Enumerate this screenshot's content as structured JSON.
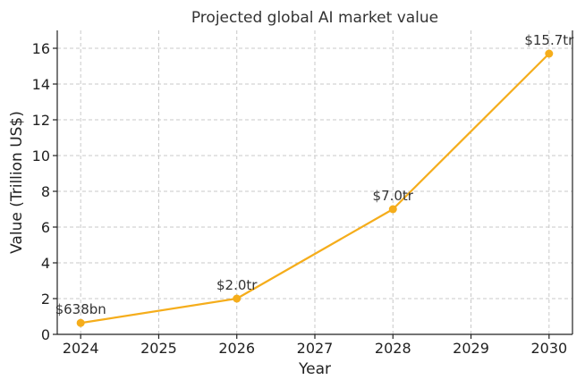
{
  "chart_data": {
    "type": "line",
    "title": "Projected global AI market value",
    "xlabel": "Year",
    "ylabel": "Value (Trillion US$)",
    "xlim": [
      2023.7,
      2030.3
    ],
    "ylim": [
      0,
      17
    ],
    "x_ticks": [
      2024,
      2025,
      2026,
      2027,
      2028,
      2029,
      2030
    ],
    "y_ticks": [
      0,
      2,
      4,
      6,
      8,
      10,
      12,
      14,
      16
    ],
    "grid": true,
    "series": [
      {
        "name": "AI market value",
        "color": "#f5ad1b",
        "x": [
          2024,
          2026,
          2028,
          2030
        ],
        "values": [
          0.638,
          2.0,
          7.0,
          15.7
        ],
        "labels": [
          "$638bn",
          "$2.0tr",
          "$7.0tr",
          "$15.7tr"
        ]
      }
    ]
  }
}
